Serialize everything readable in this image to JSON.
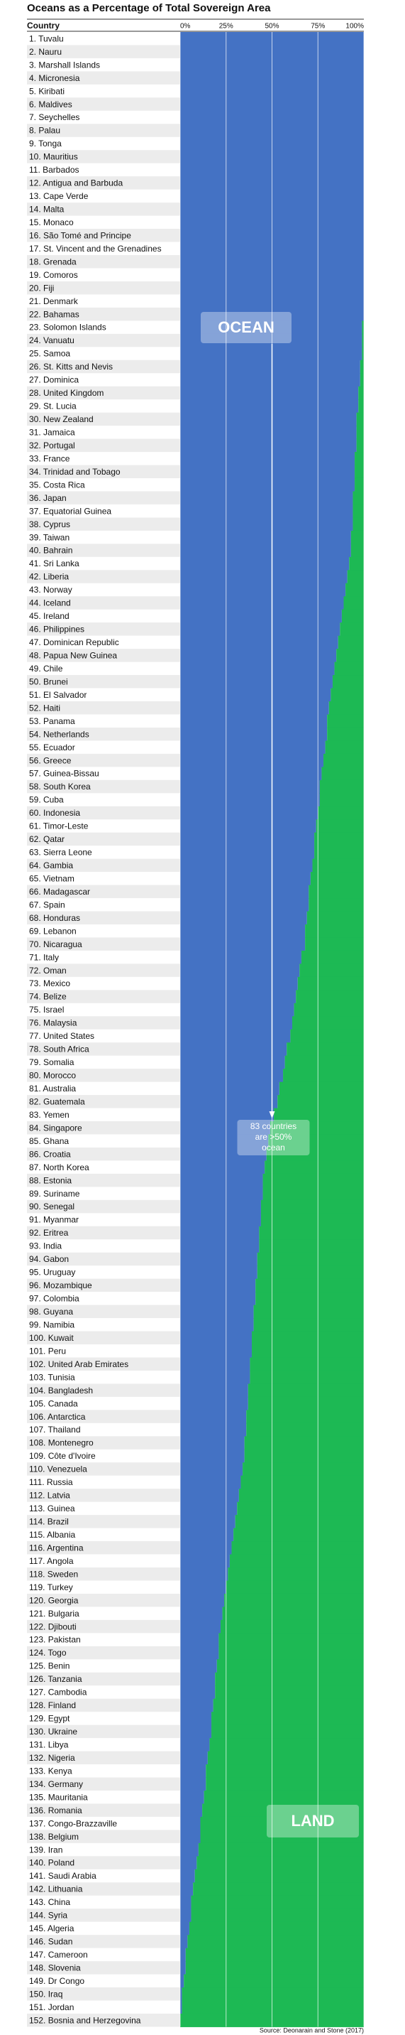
{
  "chart_data": {
    "type": "bar",
    "orientation": "horizontal",
    "title": "Oceans as a Percentage of Total Sovereign Area",
    "category_header": "Country",
    "source": "Source: Deonarain and Stone (2017)",
    "xlim": [
      0,
      100
    ],
    "xticks": [
      {
        "value": 0,
        "label": "0%"
      },
      {
        "value": 25,
        "label": "25%"
      },
      {
        "value": 50,
        "label": "50%"
      },
      {
        "value": 75,
        "label": "75%"
      },
      {
        "value": 100,
        "label": "100%"
      }
    ],
    "grid": true,
    "color": "#4472c4",
    "rest_color": "#1db954",
    "annotations": {
      "ocean": "OCEAN",
      "land": "LAND",
      "note": [
        "83 countries",
        "are >50%",
        "ocean"
      ],
      "note_value": 50
    },
    "categories": [
      "1. Tuvalu",
      "2. Nauru",
      "3. Marshall Islands",
      "4. Micronesia",
      "5. Kiribati",
      "6. Maldives",
      "7. Seychelles",
      "8. Palau",
      "9. Tonga",
      "10. Mauritius",
      "11. Barbados",
      "12. Antigua and Barbuda",
      "13. Cape Verde",
      "14. Malta",
      "15. Monaco",
      "16. São Tomé and Principe",
      "17. St. Vincent and the Grenadines",
      "18. Grenada",
      "19. Comoros",
      "20. Fiji",
      "21. Denmark",
      "22. Bahamas",
      "23. Solomon Islands",
      "24. Vanuatu",
      "25. Samoa",
      "26. St. Kitts and Nevis",
      "27. Dominica",
      "28. United Kingdom",
      "29. St. Lucia",
      "30. New Zealand",
      "31. Jamaica",
      "32. Portugal",
      "33. France",
      "34. Trinidad  and Tobago",
      "35. Costa Rica",
      "36. Japan",
      "37. Equatorial Guinea",
      "38. Cyprus",
      "39. Taiwan",
      "40. Bahrain",
      "41. Sri Lanka",
      "42. Liberia",
      "43. Norway",
      "44. Iceland",
      "45. Ireland",
      "46. Philippines",
      "47. Dominican Republic",
      "48. Papua New Guinea",
      "49. Chile",
      "50. Brunei",
      "51. El Salvador",
      "52. Haiti",
      "53. Panama",
      "54. Netherlands",
      "55. Ecuador",
      "56. Greece",
      "57. Guinea-Bissau",
      "58. South Korea",
      "59. Cuba",
      "60. Indonesia",
      "61. Timor-Leste",
      "62. Qatar",
      "63. Sierra Leone",
      "64. Gambia",
      "65. Vietnam",
      "66. Madagascar",
      "67. Spain",
      "68. Honduras",
      "69. Lebanon",
      "70. Nicaragua",
      "71. Italy",
      "72. Oman",
      "73. Mexico",
      "74. Belize",
      "75. Israel",
      "76. Malaysia",
      "77. United States",
      "78. South Africa",
      "79. Somalia",
      "80. Morocco",
      "81. Australia",
      "82. Guatemala",
      "83. Yemen",
      "84. Singapore",
      "85. Ghana",
      "86. Croatia",
      "87. North Korea",
      "88. Estonia",
      "89. Suriname",
      "90. Senegal",
      "91. Myanmar",
      "92. Eritrea",
      "93. India",
      "94. Gabon",
      "95. Uruguay",
      "96. Mozambique",
      "97. Colombia",
      "98. Guyana",
      "99. Namibia",
      "100. Kuwait",
      "101. Peru",
      "102. United Arab Emirates",
      "103. Tunisia",
      "104. Bangladesh",
      "105. Canada",
      "106. Antarctica",
      "107. Thailand",
      "108. Montenegro",
      "109. Côte d'Ivoire",
      "110. Venezuela",
      "111. Russia",
      "112. Latvia",
      "113. Guinea",
      "114. Brazil",
      "115. Albania",
      "116. Argentina",
      "117. Angola",
      "118. Sweden",
      "119. Turkey",
      "120. Georgia",
      "121. Bulgaria",
      "122. Djibouti",
      "123. Pakistan",
      "124. Togo",
      "125. Benin",
      "126. Tanzania",
      "127. Cambodia",
      "128. Finland",
      "129. Egypt",
      "130. Ukraine",
      "131. Libya",
      "132. Nigeria",
      "133. Kenya",
      "134. Germany",
      "135. Mauritania",
      "136. Romania",
      "137. Congo-Brazzaville",
      "138. Belgium",
      "139. Iran",
      "140. Poland",
      "141. Saudi Arabia",
      "142. Lithuania",
      "143. China",
      "144. Syria",
      "145. Algeria",
      "146. Sudan",
      "147. Cameroon",
      "148. Slovenia",
      "149. Dr Congo",
      "150. Iraq",
      "151. Jordan",
      "152. Bosnia and Herzegovina"
    ],
    "values": [
      100,
      100,
      100,
      100,
      100,
      100,
      100,
      100,
      100,
      100,
      100,
      100,
      100,
      100,
      100,
      100,
      100,
      100,
      100,
      100,
      100,
      100,
      99,
      99,
      99,
      98,
      98,
      97,
      97,
      96,
      96,
      96,
      95,
      95,
      95,
      94,
      94,
      94,
      93,
      93,
      92,
      91,
      90,
      89,
      88,
      87,
      86,
      85,
      84,
      83,
      82,
      81,
      80,
      80,
      79,
      78,
      77,
      76,
      76,
      75,
      74,
      73,
      73,
      72,
      71,
      70,
      70,
      69,
      68,
      68,
      66,
      65,
      64,
      63,
      62,
      61,
      60,
      58,
      57,
      56,
      54,
      53,
      51,
      49,
      48,
      47,
      46,
      45,
      45,
      44,
      44,
      43,
      43,
      42,
      42,
      41,
      41,
      40,
      40,
      39,
      39,
      38,
      38,
      37,
      37,
      36,
      36,
      35,
      35,
      34,
      33,
      32,
      31,
      30,
      29,
      28,
      27,
      26,
      25,
      24,
      23,
      22,
      21,
      21,
      20,
      19,
      19,
      18,
      17,
      17,
      16,
      15,
      14,
      14,
      13,
      12,
      11,
      11,
      10,
      9,
      8,
      7,
      6,
      6,
      5,
      4,
      3,
      3,
      2,
      1,
      1,
      0
    ]
  }
}
